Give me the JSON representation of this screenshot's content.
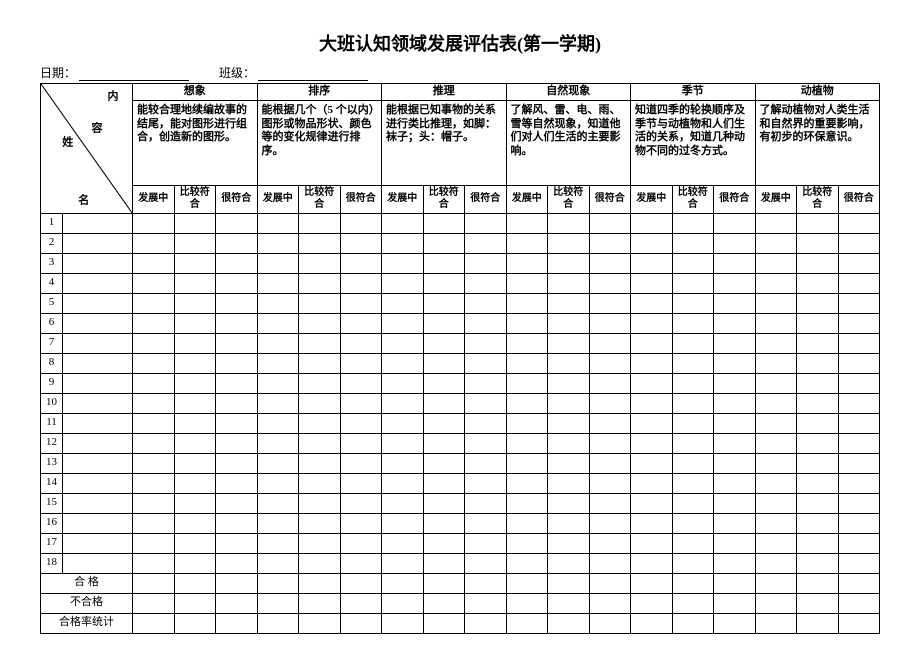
{
  "title": "大班认知领域发展评估表(第一学期)",
  "meta": {
    "date_label": "日期：",
    "class_label": "班级："
  },
  "corner": {
    "top": "内",
    "mid": "容",
    "left": "姓",
    "bottom": "名"
  },
  "categories": [
    {
      "name": "想象",
      "desc": "能较合理地续编故事的结尾，能对图形进行组合，创造新的图形。"
    },
    {
      "name": "排序",
      "desc": "能根据几个（5 个以内）图形或物品形状、颜色等的变化规律进行排序。"
    },
    {
      "name": "推理",
      "desc": "能根据已知事物的关系进行类比推理，如脚：袜子；头：帽子。"
    },
    {
      "name": "自然现象",
      "desc": "了解风、雷、电、雨、雪等自然现象，知道他们对人们生活的主要影响。"
    },
    {
      "name": "季节",
      "desc": "知道四季的轮换顺序及季节与动植物和人们生活的关系，知道几种动物不同的过冬方式。"
    },
    {
      "name": "动植物",
      "desc": "了解动植物对人类生活和自然界的重要影响，有初步的环保意识。"
    }
  ],
  "ratings": [
    "发展中",
    "比较符合",
    "很符合"
  ],
  "row_count": 18,
  "footer_rows": [
    "合 格",
    "不合格",
    "合格率统计"
  ]
}
